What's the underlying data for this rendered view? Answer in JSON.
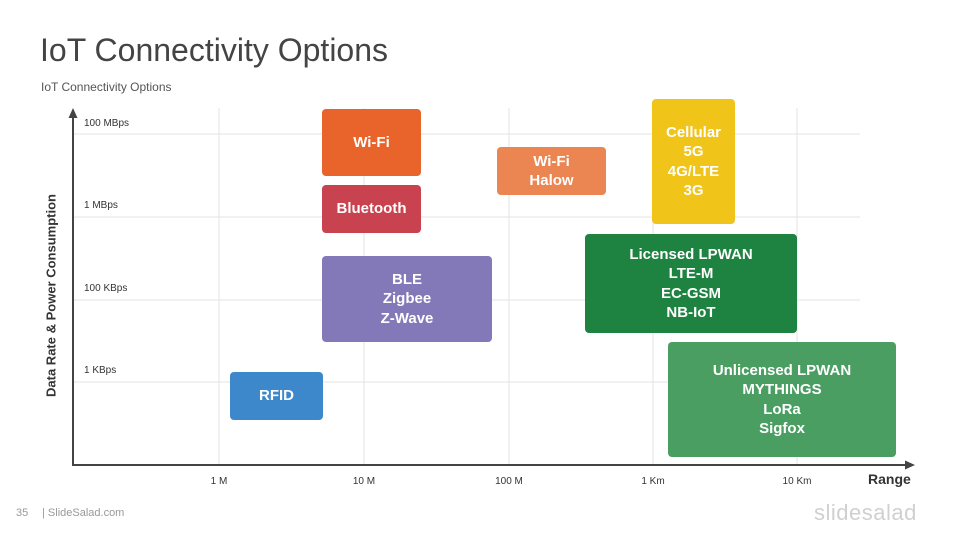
{
  "title": "IoT Connectivity Options",
  "subtitle": "IoT Connectivity Options",
  "y_axis_title": "Data Rate & Power Consumption",
  "x_axis_title": "Range",
  "y_ticks": [
    "100 MBps",
    "1 MBps",
    "100 KBps",
    "1 KBps"
  ],
  "x_ticks": [
    "1 M",
    "10 M",
    "100 M",
    "1 Km",
    "10 Km"
  ],
  "technologies": [
    {
      "label": "Wi-Fi",
      "lines": [
        "Wi-Fi"
      ],
      "color": "#E8642A"
    },
    {
      "label": "Bluetooth",
      "lines": [
        "Bluetooth"
      ],
      "color": "#C8424F"
    },
    {
      "label": "Wi-Fi Halow",
      "lines": [
        "Wi-Fi",
        "Halow"
      ],
      "color": "#EB8551"
    },
    {
      "label": "Cellular",
      "lines": [
        "Cellular",
        "5G",
        "4G/LTE",
        "3G"
      ],
      "color": "#F0C419"
    },
    {
      "label": "BLE",
      "lines": [
        "BLE",
        "Zigbee",
        "Z-Wave"
      ],
      "color": "#8479B8"
    },
    {
      "label": "Licensed LPWAN",
      "lines": [
        "Licensed LPWAN",
        "LTE-M",
        "EC-GSM",
        "NB-IoT"
      ],
      "color": "#1E8240"
    },
    {
      "label": "RFID",
      "lines": [
        "RFID"
      ],
      "color": "#3D88CB"
    },
    {
      "label": "Unlicensed LPWAN",
      "lines": [
        "Unlicensed LPWAN",
        "MYTHINGS",
        "LoRa",
        "Sigfox"
      ],
      "color": "#4A9E62"
    }
  ],
  "footer": {
    "page_number": "35",
    "site": "| SlideSalad.com",
    "logo": "slidesalad"
  }
}
